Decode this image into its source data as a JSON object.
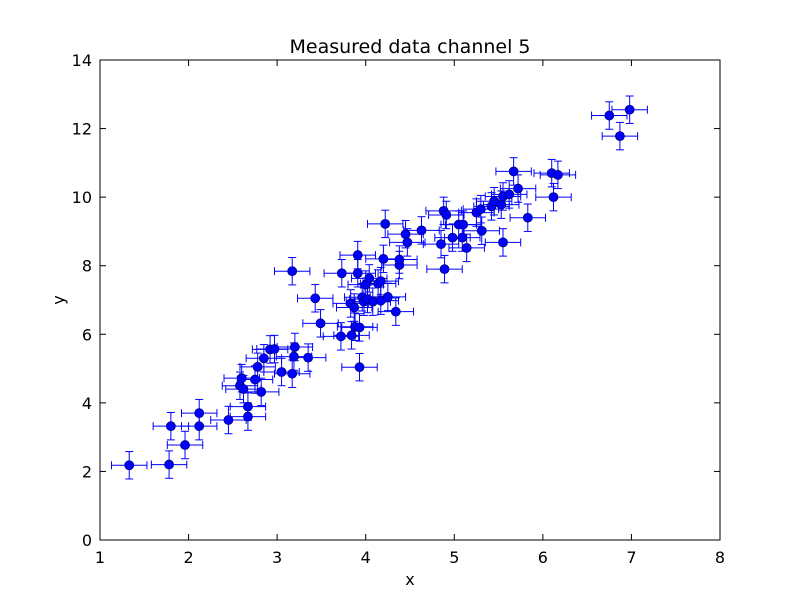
{
  "chart_data": {
    "type": "scatter",
    "title": "Measured data channel 5",
    "xlabel": "x",
    "ylabel": "y",
    "xlim": [
      1,
      8
    ],
    "ylim": [
      0,
      14
    ],
    "x_ticks": [
      1,
      2,
      3,
      4,
      5,
      6,
      7,
      8
    ],
    "y_ticks": [
      0,
      2,
      4,
      6,
      8,
      10,
      12,
      14
    ],
    "grid": false,
    "error_bars": {
      "x": 0.2,
      "y": 0.4
    },
    "colors": {
      "marker": "#0000ff",
      "marker_edge": "#000080",
      "errorbar": "#0000ff",
      "axes": "#000000"
    },
    "series": [
      {
        "points": [
          [
            1.33,
            2.18
          ],
          [
            1.78,
            2.2
          ],
          [
            1.8,
            3.32
          ],
          [
            1.96,
            2.77
          ],
          [
            2.12,
            3.7
          ],
          [
            2.12,
            3.32
          ],
          [
            2.45,
            3.5
          ],
          [
            2.58,
            4.5
          ],
          [
            2.6,
            4.72
          ],
          [
            2.62,
            4.4
          ],
          [
            2.67,
            3.6
          ],
          [
            2.67,
            3.89
          ],
          [
            2.75,
            4.68
          ],
          [
            2.78,
            5.05
          ],
          [
            2.82,
            4.32
          ],
          [
            2.85,
            5.3
          ],
          [
            2.92,
            5.56
          ],
          [
            2.97,
            5.57
          ],
          [
            3.05,
            4.9
          ],
          [
            3.17,
            4.85
          ],
          [
            3.19,
            5.35
          ],
          [
            3.2,
            5.63
          ],
          [
            3.17,
            7.84
          ],
          [
            3.35,
            5.32
          ],
          [
            3.43,
            7.05
          ],
          [
            3.49,
            6.32
          ],
          [
            3.72,
            5.94
          ],
          [
            3.73,
            7.78
          ],
          [
            3.83,
            6.9
          ],
          [
            3.84,
            5.97
          ],
          [
            3.87,
            6.78
          ],
          [
            3.88,
            6.22
          ],
          [
            3.91,
            8.31
          ],
          [
            3.91,
            7.78
          ],
          [
            3.93,
            6.2
          ],
          [
            3.93,
            5.04
          ],
          [
            3.96,
            7.08
          ],
          [
            3.98,
            6.95
          ],
          [
            4.0,
            7.45
          ],
          [
            4.02,
            7.03
          ],
          [
            4.04,
            7.63
          ],
          [
            4.08,
            6.95
          ],
          [
            4.14,
            7.48
          ],
          [
            4.17,
            6.98
          ],
          [
            4.17,
            7.55
          ],
          [
            4.2,
            8.2
          ],
          [
            4.22,
            9.22
          ],
          [
            4.25,
            7.09
          ],
          [
            4.34,
            6.66
          ],
          [
            4.38,
            8.02
          ],
          [
            4.38,
            8.18
          ],
          [
            4.45,
            8.92
          ],
          [
            4.47,
            8.68
          ],
          [
            4.63,
            9.03
          ],
          [
            4.85,
            8.63
          ],
          [
            4.88,
            9.6
          ],
          [
            4.89,
            7.9
          ],
          [
            4.91,
            9.48
          ],
          [
            4.98,
            8.82
          ],
          [
            5.05,
            9.2
          ],
          [
            5.09,
            8.82
          ],
          [
            5.1,
            9.2
          ],
          [
            5.14,
            8.52
          ],
          [
            5.25,
            9.55
          ],
          [
            5.3,
            9.65
          ],
          [
            5.31,
            9.02
          ],
          [
            5.42,
            9.73
          ],
          [
            5.45,
            9.88
          ],
          [
            5.53,
            9.78
          ],
          [
            5.55,
            10.02
          ],
          [
            5.55,
            8.68
          ],
          [
            5.62,
            10.08
          ],
          [
            5.67,
            10.75
          ],
          [
            5.72,
            10.25
          ],
          [
            5.83,
            9.4
          ],
          [
            6.1,
            10.7
          ],
          [
            6.12,
            10.0
          ],
          [
            6.17,
            10.65
          ],
          [
            6.75,
            12.38
          ],
          [
            6.87,
            11.78
          ],
          [
            6.98,
            12.55
          ]
        ]
      }
    ]
  }
}
